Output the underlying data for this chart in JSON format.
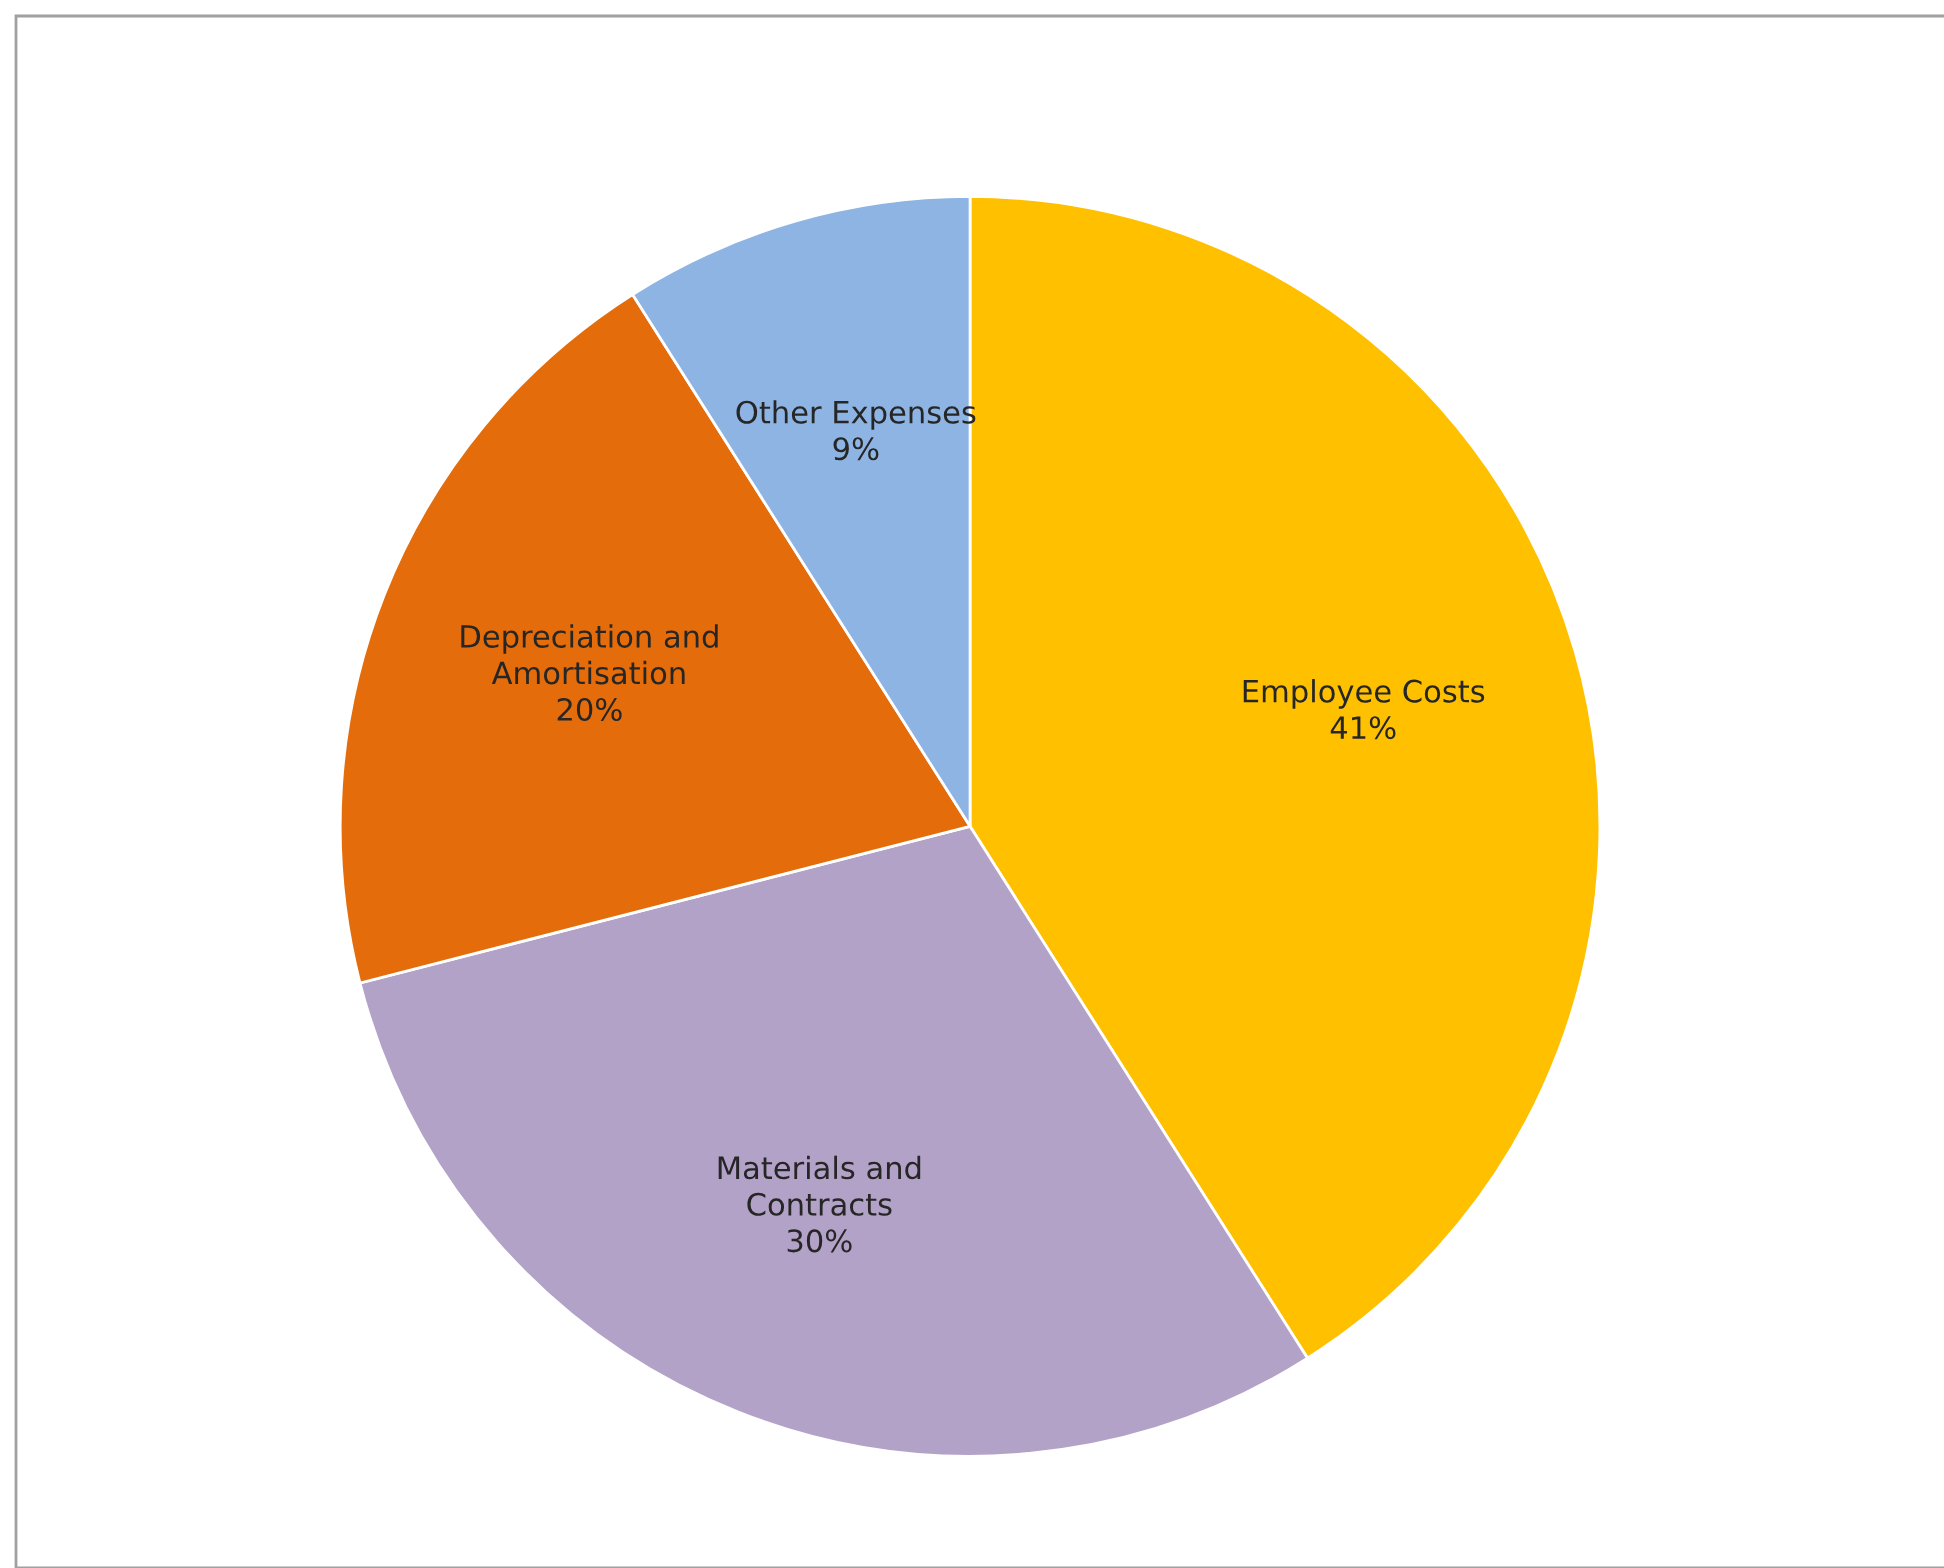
{
  "chart_data": {
    "type": "pie",
    "categories": [
      "Employee Costs",
      "Materials and\nContracts",
      "Depreciation and\nAmortisation",
      "Other Expenses"
    ],
    "values": [
      41,
      30,
      20,
      9
    ],
    "colors": [
      "#ffc000",
      "#b3a2c7",
      "#e46c0a",
      "#8eb4e3"
    ],
    "value_labels": [
      "41%",
      "30%",
      "20%",
      "9%"
    ],
    "legend": false
  }
}
